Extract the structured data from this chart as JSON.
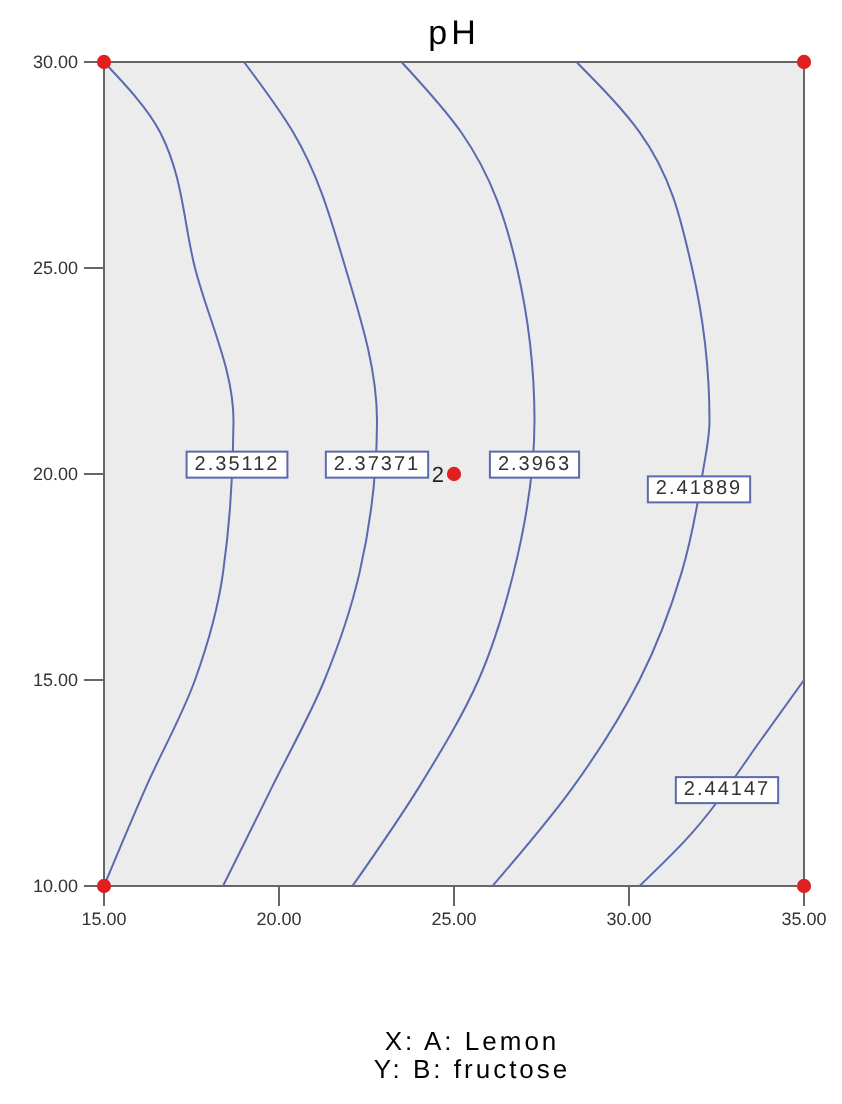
{
  "chart_data": {
    "type": "line",
    "title": "pH",
    "xlabel": "X: A: Lemon",
    "xlim": [
      15,
      35
    ],
    "ylim": [
      10,
      30
    ],
    "xticks": [
      {
        "value": 15,
        "label": "15.00"
      },
      {
        "value": 20,
        "label": "20.00"
      },
      {
        "value": 25,
        "label": "25.00"
      },
      {
        "value": 30,
        "label": "30.00"
      },
      {
        "value": 35,
        "label": "35.00"
      }
    ],
    "yticks": [
      {
        "value": 10,
        "label": "10.00"
      },
      {
        "value": 15,
        "label": "15.00"
      },
      {
        "value": 20,
        "label": "20.00"
      },
      {
        "value": 25,
        "label": "25.00"
      },
      {
        "value": 30,
        "label": "30.00"
      }
    ],
    "grid": false,
    "line_style": "solid",
    "series": [
      {
        "color": "#5a6aae",
        "x": [
          15,
          16.6,
          17.6,
          18.7,
          18.4,
          17.6,
          16.2,
          15
        ],
        "values": [
          30,
          28.3,
          25,
          21.3,
          17.6,
          15,
          12.4,
          10
        ]
      },
      {
        "color": "#5a6aae",
        "x": [
          19.0,
          20.4,
          21.9,
          22.8,
          22.3,
          21.3,
          19.8,
          18.4
        ],
        "values": [
          30,
          28.3,
          25,
          21.3,
          17.6,
          15,
          12.4,
          10
        ]
      },
      {
        "color": "#5a6aae",
        "x": [
          23.5,
          25.2,
          26.8,
          27.3,
          26.7,
          25.7,
          24.0,
          22.1
        ],
        "values": [
          30,
          28.3,
          25,
          21.3,
          17.6,
          15,
          12.4,
          10
        ]
      },
      {
        "color": "#5a6aae",
        "x": [
          28.5,
          30.3,
          31.8,
          32.3,
          32.1,
          31.5,
          30.3,
          28.4,
          26.1
        ],
        "values": [
          30,
          28.3,
          25,
          21.3,
          20,
          17.6,
          15,
          12.4,
          10
        ]
      },
      {
        "color": "#5a6aae",
        "x": [
          35,
          33.9,
          31.6,
          30.3
        ],
        "values": [
          15,
          13.7,
          11.1,
          10
        ]
      },
      {
        "type": "scatter",
        "color": "#e02020",
        "marker": "circle",
        "x": [
          15,
          15,
          35,
          35,
          25
        ],
        "values": [
          10,
          30,
          10,
          30,
          20
        ]
      }
    ],
    "annotations": [
      {
        "text": "2.35112",
        "x": 18.8,
        "y": 20.3
      },
      {
        "text": "2.37371",
        "x": 22.8,
        "y": 20.3
      },
      {
        "text": "2.3963",
        "x": 27.3,
        "y": 20.3
      },
      {
        "text": "2.41889",
        "x": 32.0,
        "y": 19.7
      },
      {
        "text": "2.44147",
        "x": 32.8,
        "y": 12.4
      },
      "Y: B: fructose",
      {
        "text": "2",
        "x": 25,
        "y": 20
      }
    ]
  }
}
